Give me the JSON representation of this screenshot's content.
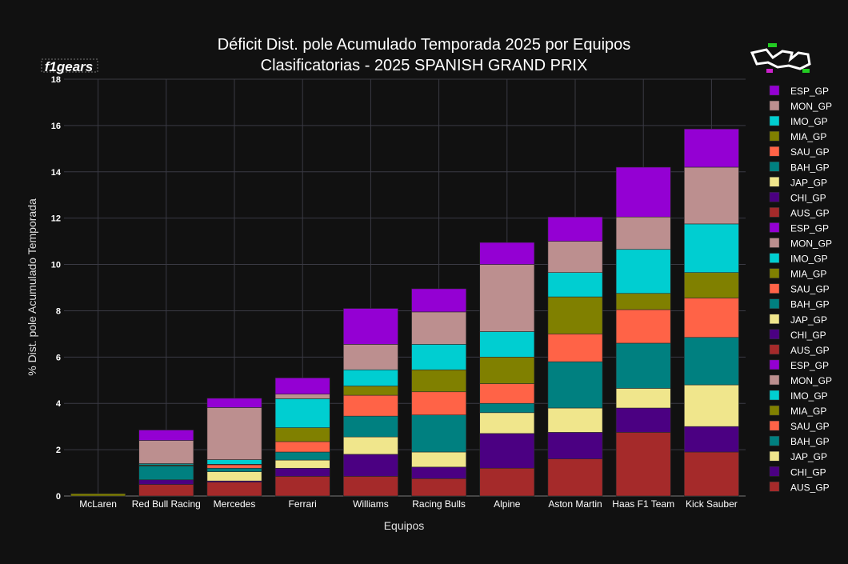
{
  "colors": {
    "background": "#111111",
    "grid": "#3a3a44",
    "text": "#ffffff",
    "AUS_GP": "#a52a2a",
    "CHI_GP": "#4b0082",
    "JAP_GP": "#f0e68c",
    "BAH_GP": "#008080",
    "SAU_GP": "#ff6347",
    "MIA_GP": "#808000",
    "IMO_GP": "#00ced1",
    "MON_GP": "#bc8f8f",
    "ESP_GP": "#9400d3"
  },
  "logo": {
    "text": "f1gears",
    "track_icon": "circuit-de-barcelona-icon"
  },
  "legend": [
    "ESP_GP",
    "MON_GP",
    "IMO_GP",
    "MIA_GP",
    "SAU_GP",
    "BAH_GP",
    "JAP_GP",
    "CHI_GP",
    "AUS_GP",
    "ESP_GP",
    "MON_GP",
    "IMO_GP",
    "MIA_GP",
    "SAU_GP",
    "BAH_GP",
    "JAP_GP",
    "CHI_GP",
    "AUS_GP",
    "ESP_GP",
    "MON_GP",
    "IMO_GP",
    "MIA_GP",
    "SAU_GP",
    "BAH_GP",
    "JAP_GP",
    "CHI_GP",
    "AUS_GP"
  ],
  "chart_data": {
    "type": "bar",
    "stacked": true,
    "title": "Déficit Dist. pole Acumulado Temporada 2025 por Equipos",
    "subtitle": "Clasificatorias - 2025 SPANISH GRAND PRIX",
    "xlabel": "Equipos",
    "ylabel": "% Dist. pole Acumulado Temporada",
    "ylim": [
      0,
      18
    ],
    "yticks": [
      0,
      2,
      4,
      6,
      8,
      10,
      12,
      14,
      16,
      18
    ],
    "grid": true,
    "legend_position": "right",
    "categories": [
      "McLaren",
      "Red Bull Racing",
      "Mercedes",
      "Ferrari",
      "Williams",
      "Racing Bulls",
      "Alpine",
      "Aston Martin",
      "Haas F1 Team",
      "Kick Sauber"
    ],
    "series": [
      {
        "name": "AUS_GP",
        "values": [
          0,
          0.5,
          0.6,
          0.85,
          0.85,
          0.75,
          1.2,
          1.6,
          2.75,
          1.9
        ]
      },
      {
        "name": "CHI_GP",
        "values": [
          0,
          0.2,
          0.05,
          0.35,
          0.95,
          0.5,
          1.5,
          1.15,
          1.05,
          1.1
        ]
      },
      {
        "name": "JAP_GP",
        "values": [
          0,
          0,
          0.4,
          0.35,
          0.75,
          0.65,
          0.9,
          1.05,
          0.85,
          1.8
        ]
      },
      {
        "name": "BAH_GP",
        "values": [
          0,
          0.6,
          0.15,
          0.35,
          0.9,
          1.6,
          0.4,
          2.0,
          1.95,
          2.05
        ]
      },
      {
        "name": "SAU_GP",
        "values": [
          0,
          0.02,
          0.15,
          0.45,
          0.9,
          1.0,
          0.85,
          1.2,
          1.45,
          1.7
        ]
      },
      {
        "name": "MIA_GP",
        "values": [
          0.1,
          0.03,
          0.02,
          0.6,
          0.4,
          0.95,
          1.15,
          1.6,
          0.7,
          1.1
        ]
      },
      {
        "name": "IMO_GP",
        "values": [
          0,
          0.05,
          0.2,
          1.25,
          0.7,
          1.1,
          1.1,
          1.05,
          1.9,
          2.1
        ]
      },
      {
        "name": "MON_GP",
        "values": [
          0,
          1.0,
          2.25,
          0.2,
          1.1,
          1.4,
          2.9,
          1.35,
          1.4,
          2.45
        ]
      },
      {
        "name": "ESP_GP",
        "values": [
          0,
          0.45,
          0.4,
          0.7,
          1.55,
          1.0,
          0.95,
          1.05,
          2.15,
          1.65
        ]
      }
    ]
  }
}
